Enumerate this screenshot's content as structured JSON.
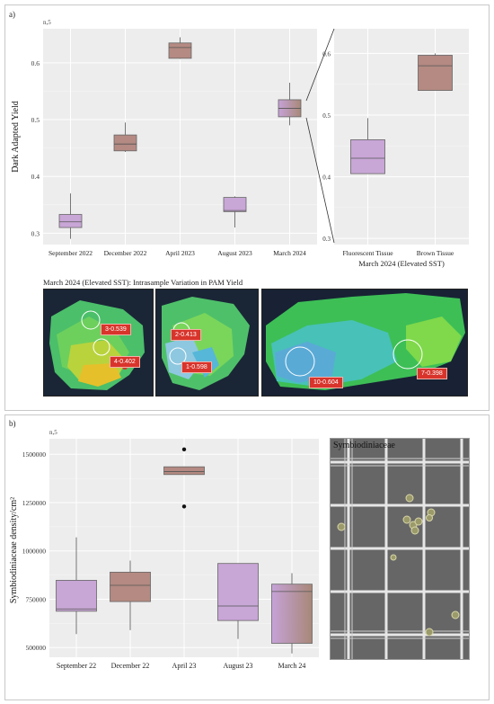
{
  "panels": {
    "a_label": "a)",
    "b_label": "b)"
  },
  "pam": {
    "title": "March 2024 (Elevated SST): Intrasample Variation in PAM Yield",
    "labels": [
      "3-0.539",
      "4-0.402",
      "2-0.413",
      "1-0.598",
      "10-0.604",
      "7-0.398"
    ]
  },
  "micro": {
    "title": "Symbiodiniaceae"
  },
  "colors": {
    "purple": "#c8a6d6",
    "brown": "#b48a82",
    "plot_bg": "#ededed",
    "label_red": "#d8342b"
  },
  "chart_data": [
    {
      "type": "boxplot",
      "n_label": "n,5",
      "ylabel": "Dark Adapted Yield",
      "xlabel": "",
      "ylim": [
        0.28,
        0.66
      ],
      "yticks": [
        0.3,
        0.4,
        0.5,
        0.6
      ],
      "ytick_labels": [
        "0.3",
        "0.4",
        "0.5",
        "0.6"
      ],
      "grid": true,
      "categories": [
        "September 2022",
        "December 2022",
        "April 2023",
        "August 2023",
        "March 2024"
      ],
      "boxes": [
        {
          "whisker_low": 0.29,
          "q1": 0.31,
          "median": 0.32,
          "q3": 0.333,
          "whisker_high": 0.37,
          "color": "purple"
        },
        {
          "whisker_low": 0.443,
          "q1": 0.445,
          "median": 0.457,
          "q3": 0.473,
          "whisker_high": 0.495,
          "color": "brown"
        },
        {
          "whisker_low": 0.607,
          "q1": 0.608,
          "median": 0.627,
          "q3": 0.635,
          "whisker_high": 0.645,
          "color": "brown"
        },
        {
          "whisker_low": 0.31,
          "q1": 0.338,
          "median": 0.34,
          "q3": 0.363,
          "whisker_high": 0.365,
          "color": "purple"
        },
        {
          "whisker_low": 0.49,
          "q1": 0.505,
          "median": 0.52,
          "q3": 0.535,
          "whisker_high": 0.565,
          "color": "purple-brown"
        }
      ],
      "outliers": []
    },
    {
      "type": "boxplot",
      "xlabel": "March 2024 (Elevated SST)",
      "ylim": [
        0.29,
        0.64
      ],
      "yticks": [
        0.3,
        0.4,
        0.5,
        0.6
      ],
      "ytick_labels": [
        "0.3",
        "0.4",
        "0.5",
        "0.6"
      ],
      "grid": true,
      "categories": [
        "Fluorescent Tissue",
        "Brown Tissue"
      ],
      "boxes": [
        {
          "whisker_low": 0.405,
          "q1": 0.405,
          "median": 0.43,
          "q3": 0.46,
          "whisker_high": 0.495,
          "color": "purple"
        },
        {
          "whisker_low": 0.54,
          "q1": 0.54,
          "median": 0.58,
          "q3": 0.597,
          "whisker_high": 0.6,
          "color": "brown"
        }
      ],
      "outliers": []
    },
    {
      "type": "boxplot",
      "n_label": "n,5",
      "ylabel": "Symbiodiniaceae density/cm²",
      "xlabel": "",
      "ylim": [
        450000,
        1580000
      ],
      "yticks": [
        500000,
        750000,
        1000000,
        1250000,
        1500000
      ],
      "ytick_labels": [
        "500000",
        "750000",
        "1000000",
        "1250000",
        "1500000"
      ],
      "grid": true,
      "categories": [
        "September 22",
        "December 22",
        "April 23",
        "August 23",
        "March 24"
      ],
      "boxes": [
        {
          "whisker_low": 570000,
          "q1": 688000,
          "median": 700000,
          "q3": 848000,
          "whisker_high": 1070000,
          "color": "purple"
        },
        {
          "whisker_low": 590000,
          "q1": 738000,
          "median": 822000,
          "q3": 890000,
          "whisker_high": 950000,
          "color": "brown"
        },
        {
          "whisker_low": 1395000,
          "q1": 1395000,
          "median": 1410000,
          "q3": 1435000,
          "whisker_high": 1435000,
          "color": "brown"
        },
        {
          "whisker_low": 545000,
          "q1": 640000,
          "median": 715000,
          "q3": 935000,
          "whisker_high": 935000,
          "color": "purple"
        },
        {
          "whisker_low": 470000,
          "q1": 522000,
          "median": 790000,
          "q3": 828000,
          "whisker_high": 885000,
          "color": "purple-brown"
        }
      ],
      "outliers": [
        {
          "category": "April 23",
          "value": 1525000
        },
        {
          "category": "April 23",
          "value": 1230000
        }
      ]
    }
  ]
}
